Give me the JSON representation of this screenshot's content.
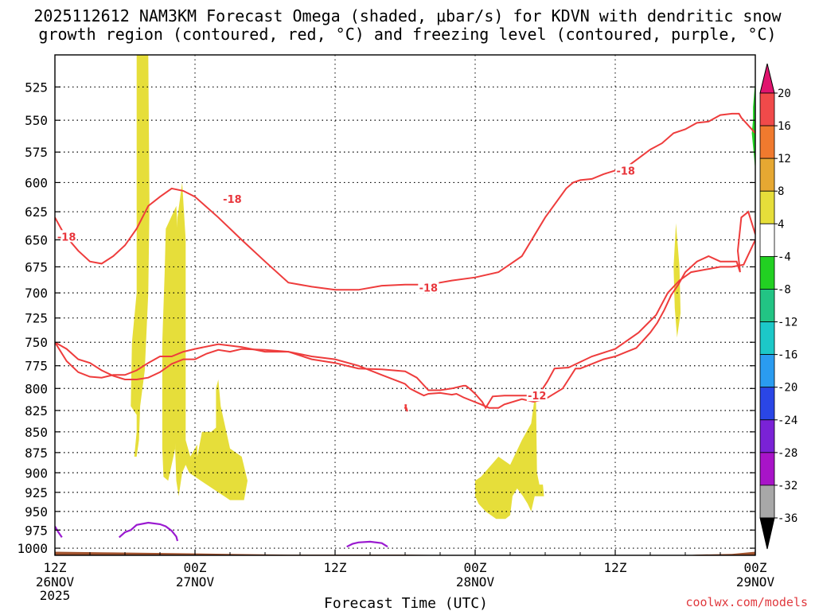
{
  "title": {
    "line1": "2025112612 NAM3KM Forecast Omega (shaded, μbar/s) for KDVN with dendritic snow",
    "line2": "growth region (contoured, red, °C) and freezing level (contoured, purple, °C)"
  },
  "credit": "coolwx.com/models",
  "chart_data": {
    "type": "heatmap",
    "xlabel": "Forecast Time (UTC)",
    "x_ticks": [
      {
        "h": 0,
        "l1": "12Z",
        "l2": "26NOV",
        "l3": "2025"
      },
      {
        "h": 12,
        "l1": "00Z",
        "l2": "27NOV",
        "l3": ""
      },
      {
        "h": 24,
        "l1": "12Z",
        "l2": "",
        "l3": ""
      },
      {
        "h": 36,
        "l1": "00Z",
        "l2": "28NOV",
        "l3": ""
      },
      {
        "h": 48,
        "l1": "12Z",
        "l2": "",
        "l3": ""
      },
      {
        "h": 60,
        "l1": "00Z",
        "l2": "29NOV",
        "l3": ""
      }
    ],
    "xlim_hours": [
      0,
      60
    ],
    "y_ticks": [
      525,
      550,
      575,
      600,
      625,
      650,
      675,
      700,
      725,
      750,
      775,
      800,
      825,
      850,
      875,
      900,
      925,
      950,
      975,
      1000
    ],
    "ylim_mb": [
      502,
      1010
    ],
    "y_scale": "log-pressure",
    "colorbar": {
      "labels": [
        "20",
        "16",
        "12",
        "8",
        "4",
        "-4",
        "-8",
        "-12",
        "-16",
        "-20",
        "-24",
        "-28",
        "-32",
        "-36"
      ],
      "bands": [
        {
          "lo": 16,
          "hi": 20,
          "color": "#f04a4a"
        },
        {
          "lo": 12,
          "hi": 16,
          "color": "#f07a2e"
        },
        {
          "lo": 8,
          "hi": 12,
          "color": "#e6a832"
        },
        {
          "lo": 4,
          "hi": 8,
          "color": "#e6de3a"
        },
        {
          "lo": -4,
          "hi": 4,
          "color": "#ffffff"
        },
        {
          "lo": -8,
          "hi": -4,
          "color": "#22d022"
        },
        {
          "lo": -12,
          "hi": -8,
          "color": "#22c484"
        },
        {
          "lo": -16,
          "hi": -12,
          "color": "#1cc8c8"
        },
        {
          "lo": -20,
          "hi": -16,
          "color": "#2a9cf0"
        },
        {
          "lo": -24,
          "hi": -20,
          "color": "#2a46e6"
        },
        {
          "lo": -28,
          "hi": -24,
          "color": "#7a22d6"
        },
        {
          "lo": -32,
          "hi": -28,
          "color": "#a814c8"
        },
        {
          "lo": -36,
          "hi": -32,
          "color": "#a8a8a8"
        }
      ],
      "over_color": "#e0146e",
      "under_color": "#000000"
    },
    "omega_color": "#e6de3a",
    "omega_neg_color": "#22d022",
    "omega_regions_4_to_8": [
      {
        "t": [
          7.0,
          8.0,
          8.1,
          8.0,
          7.7,
          7.3,
          7.2,
          7.0,
          6.8,
          7.0,
          7.0,
          6.5,
          6.6,
          7.0
        ],
        "p": [
          502,
          502,
          620,
          700,
          780,
          820,
          860,
          880,
          880,
          850,
          830,
          820,
          750,
          700
        ]
      },
      {
        "t": [
          9.5,
          10.4,
          10.8,
          10.6,
          10.3,
          9.7,
          9.3,
          9.2,
          9.2,
          9.4
        ],
        "p": [
          640,
          620,
          700,
          800,
          870,
          910,
          905,
          870,
          750,
          680
        ]
      },
      {
        "t": [
          10.5,
          10.9,
          11.2,
          11.2,
          11.6,
          12.2,
          12.2,
          12.6,
          13.4,
          13.8,
          13.8,
          14.0,
          14.2,
          15.0,
          16.0,
          16.5,
          16.2,
          15.0,
          13.5,
          12.5,
          12.0,
          11.5,
          11.2,
          10.9,
          10.6,
          10.4,
          10.3
        ],
        "p": [
          630,
          600,
          650,
          860,
          880,
          865,
          880,
          850,
          850,
          845,
          800,
          790,
          820,
          870,
          880,
          910,
          935,
          935,
          920,
          910,
          905,
          900,
          890,
          900,
          930,
          910,
          870
        ]
      },
      {
        "t": [
          36.0,
          36.5,
          38.0,
          39.0,
          40.0,
          40.8,
          41.0,
          41.2,
          41.3,
          41.5,
          41.8,
          41.9,
          41.1,
          40.8,
          40.5,
          40.1,
          39.6,
          39.2,
          39.0,
          38.6,
          37.8,
          36.9,
          36.3,
          36.0
        ],
        "p": [
          910,
          905,
          880,
          890,
          860,
          840,
          820,
          800,
          900,
          915,
          915,
          930,
          930,
          950,
          940,
          930,
          920,
          930,
          955,
          960,
          960,
          950,
          940,
          930
        ]
      },
      {
        "t": [
          53.2,
          53.5,
          53.6,
          53.3,
          53.1,
          53.0
        ],
        "p": [
          635,
          675,
          720,
          745,
          715,
          675
        ]
      }
    ],
    "omega_regions_neg4_to_neg8": [
      {
        "t": [
          59.8,
          60.0,
          60.0,
          59.7,
          59.8
        ],
        "p": [
          540,
          520,
          590,
          560,
          550
        ]
      }
    ],
    "isotherm_minus18": {
      "label": "-18",
      "t": [
        0.0,
        0.8,
        2.0,
        3.0,
        4.0,
        5.0,
        6.0,
        7.0,
        8.0,
        9.0,
        10.0,
        11.0,
        12.0,
        14.0,
        16.0,
        18.0,
        20.0,
        22.0,
        24.0,
        26.0,
        28.0,
        30.0,
        32.0,
        34.0,
        36.0,
        38.0,
        40.0,
        42.0,
        43.8,
        44.4,
        45.0,
        46.0,
        47.0,
        48.0,
        49.0,
        50.0,
        51.0,
        52.0,
        53.0,
        54.0,
        55.0,
        56.0,
        57.0,
        58.0,
        58.6,
        58.8,
        59.5,
        60.0
      ],
      "p": [
        630,
        645,
        660,
        670,
        672,
        665,
        655,
        640,
        620,
        612,
        605,
        607,
        612,
        630,
        650,
        670,
        690,
        694,
        697,
        697,
        693,
        692,
        692,
        688,
        685,
        680,
        665,
        630,
        605,
        600,
        598,
        597,
        593,
        590,
        587,
        580,
        573,
        568,
        560,
        557,
        552,
        551,
        546,
        545,
        545,
        548,
        555,
        560
      ]
    },
    "isotherm_minus18_b": {
      "label": "",
      "t": [
        60.0,
        59.4,
        58.8,
        58.5,
        58.7,
        58.4,
        57.0,
        56.0,
        55.0,
        54.0,
        53.4,
        52.8,
        52.2,
        51.6,
        51.0,
        50.4,
        49.8,
        49.0,
        48.0,
        47.0,
        46.0,
        45.0,
        44.6,
        44.0,
        43.5,
        42.0,
        41.0,
        40.0,
        38.5,
        38.0,
        37.2,
        36.5,
        35.0,
        34.4,
        34.0,
        33.0,
        32.0,
        31.6,
        31.0,
        30.4,
        30.0,
        28.0,
        26.0,
        24.0,
        22.0,
        20.0,
        18.0,
        16.0,
        14.0,
        12.0,
        11.0,
        10.0,
        9.0,
        8.0,
        7.0,
        6.0,
        5.0,
        4.0,
        3.0,
        2.0,
        1.0,
        0.0
      ],
      "p": [
        645,
        625,
        630,
        660,
        680,
        670,
        670,
        665,
        670,
        680,
        692,
        702,
        717,
        730,
        740,
        748,
        756,
        760,
        765,
        768,
        773,
        778,
        778,
        790,
        800,
        812,
        815,
        812,
        818,
        822,
        822,
        818,
        810,
        806,
        807,
        805,
        806,
        808,
        804,
        800,
        795,
        785,
        775,
        768,
        765,
        760,
        760,
        755,
        752,
        757,
        760,
        765,
        765,
        772,
        780,
        785,
        785,
        788,
        787,
        782,
        770,
        750
      ]
    },
    "isotherm_minus12": {
      "label": "-12",
      "t": [
        0.0,
        1.0,
        2.0,
        3.0,
        4.0,
        5.0,
        6.0,
        7.0,
        8.0,
        9.0,
        10.0,
        11.0,
        12.0,
        13.0,
        14.0,
        15.0,
        16.0,
        18.0,
        20.0,
        22.0,
        24.0,
        26.0,
        28.0,
        30.0,
        31.0,
        32.0,
        33.0,
        34.0,
        35.0,
        35.2,
        35.5,
        36.0,
        36.6,
        36.9,
        37.5,
        38.5,
        40.0,
        41.0,
        41.4,
        42.2,
        42.8,
        44.0,
        46.0,
        48.0,
        50.0,
        51.5,
        52.5,
        53.5,
        54.5,
        56.0,
        57.0,
        58.0,
        59.0,
        60.0
      ],
      "p": [
        750,
        757,
        768,
        772,
        780,
        786,
        790,
        790,
        788,
        782,
        773,
        768,
        768,
        762,
        758,
        760,
        757,
        758,
        760,
        768,
        772,
        778,
        779,
        781,
        788,
        802,
        802,
        800,
        797,
        797,
        800,
        806,
        815,
        822,
        809,
        808,
        808,
        808,
        808,
        792,
        778,
        777,
        765,
        757,
        740,
        722,
        700,
        688,
        680,
        677,
        675,
        675,
        673,
        650
      ]
    },
    "isotherm_minus12_fragment": {
      "t": [
        30.1,
        30.0,
        30.2,
        30.0
      ],
      "p": [
        818,
        822,
        826,
        818
      ]
    },
    "freezing_level": [
      {
        "t": [
          0.0,
          0.3,
          0.6
        ],
        "p": [
          970,
          978,
          985
        ]
      },
      {
        "t": [
          5.5,
          6.0,
          6.5,
          7.0,
          8.0,
          9.0,
          9.5,
          10.0,
          10.4,
          10.5
        ],
        "p": [
          985,
          978,
          975,
          968,
          965,
          967,
          970,
          976,
          984,
          990
        ]
      },
      {
        "t": [
          25.0,
          25.5,
          26.0,
          27.0,
          28.0,
          28.5
        ],
        "p": [
          998,
          994,
          992,
          991,
          993,
          998
        ]
      }
    ],
    "ground": {
      "color": "#a0522d",
      "t": [
        0,
        5,
        10,
        15,
        20,
        25,
        30,
        35,
        40,
        45,
        50,
        52,
        55,
        58,
        60
      ],
      "p": [
        1005,
        1006,
        1007,
        1008,
        1009,
        1009,
        1009,
        1010,
        1010,
        1010,
        1010,
        1012,
        1009,
        1008,
        1005
      ]
    }
  }
}
